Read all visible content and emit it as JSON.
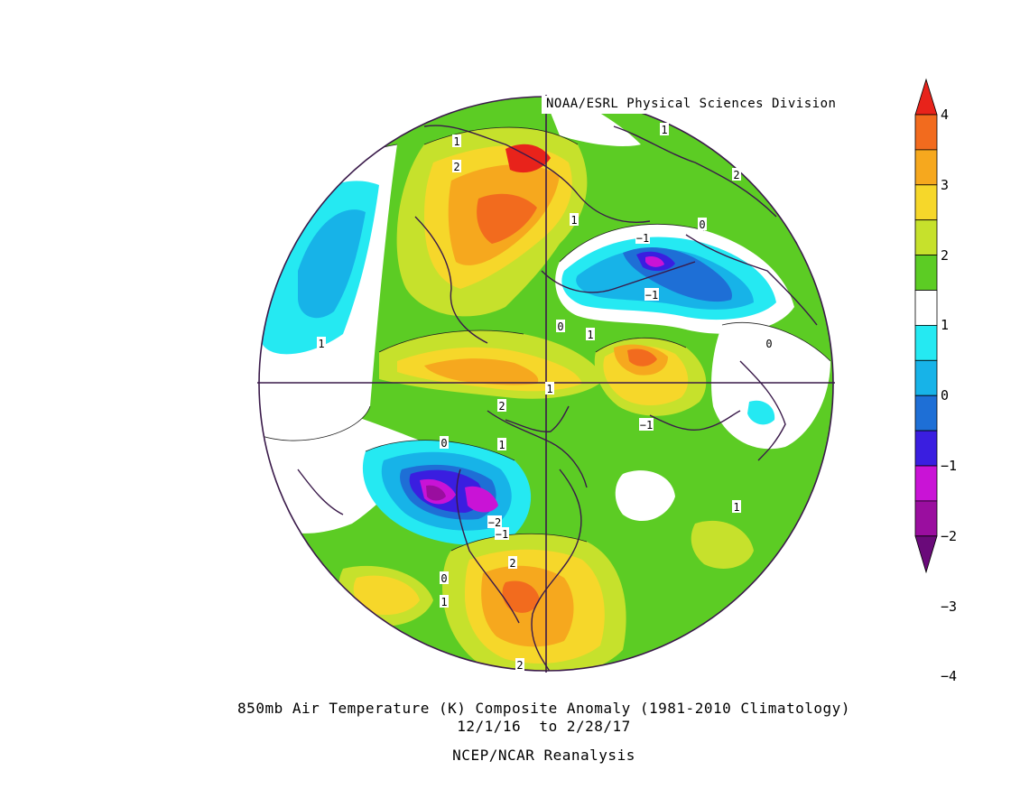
{
  "credit": "NOAA/ESRL Physical Sciences Division",
  "caption": {
    "line1": "850mb Air Temperature (K) Composite Anomaly (1981-2010 Climatology)",
    "line2": "12/1/16  to 2/28/17",
    "line3": "NCEP/NCAR Reanalysis"
  },
  "colorbar": {
    "labels": [
      "4",
      "3",
      "2",
      "1",
      "0",
      "−1",
      "−2",
      "−3",
      "−4"
    ],
    "colors": [
      "#e8231b",
      "#f26b1e",
      "#f6a81e",
      "#f6d72a",
      "#c6e12c",
      "#5ccc24",
      "#ffffff",
      "#25e9f2",
      "#17b3e8",
      "#1e6fd6",
      "#3a1ee0",
      "#c913d6",
      "#9a0e9f",
      "#6a0a7a"
    ]
  },
  "contour_labels": [
    "1",
    "2",
    "1",
    "2",
    "1",
    "0",
    "−1",
    "−1",
    "0",
    "1",
    "1",
    "2",
    "1",
    "−1",
    "0",
    "1",
    "0",
    "−2",
    "−1",
    "2",
    "0",
    "1",
    "2",
    "1"
  ]
}
